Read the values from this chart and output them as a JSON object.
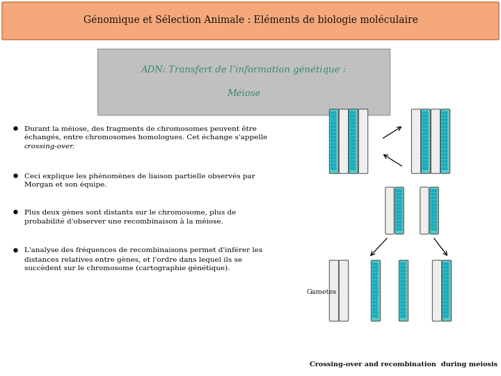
{
  "header_title": "Génomique et Sélection Animale : Eléments de biologie moléculaire",
  "header_bg_color": "#F5A87A",
  "header_border_color": "#C07040",
  "subtitle_line1": "ADN: Transfert de l’information génétique :",
  "subtitle_line2": "Méiose",
  "subtitle_text_color": "#3A8A6A",
  "subtitle_bg_color": "#C0C0C0",
  "subtitle_border_color": "#999999",
  "bg_color": "#FFFFFF",
  "body_text_color": "#000000",
  "body_font_size": 7.5,
  "bullet_points": [
    [
      "Durant la méiose, des fragments de chromosomes peuvent être",
      "échangés, entre chromosomes homologues. Cet échange s'appelle",
      "crossing-over."
    ],
    [
      "Ceci explique les phénomènes de liaison partielle observés par",
      "Morgan et son équipe."
    ],
    [
      "Plus deux gènes sont distants sur le chromosome, plus de",
      "probabilité d'observer une recombinaison à la méiose."
    ],
    [
      "L'analyse des fréquences de recombinaisons permet d'inférer les",
      "distances relatives entre gènes, et l'ordre dans lequel ils se",
      "succèdent sur le chromosome (cartographie génétique)."
    ]
  ],
  "crossing_over_label": "Crossing-over and recombination  during meiosis",
  "gametes_label": "Gametes",
  "teal_color": "#5BC8C8",
  "white_chr_color": "#EEEEEE"
}
